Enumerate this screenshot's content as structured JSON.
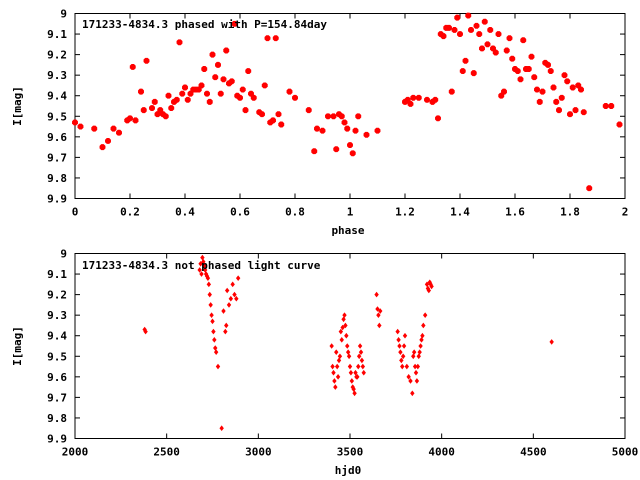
{
  "chart_data": [
    {
      "type": "scatter",
      "title": "171233-4834.3 phased with P=154.84day",
      "xlabel": "phase",
      "ylabel": "I[mag]",
      "xlim": [
        0,
        2
      ],
      "ylim": [
        9.9,
        9
      ],
      "y_inverted": true,
      "xticks": [
        "0",
        "0.2",
        "0.4",
        "0.6",
        "0.8",
        "1",
        "1.2",
        "1.4",
        "1.6",
        "1.8",
        "2"
      ],
      "yticks": [
        "9",
        "9.1",
        "9.2",
        "9.3",
        "9.4",
        "9.5",
        "9.6",
        "9.7",
        "9.8",
        "9.9"
      ],
      "marker": "star",
      "color": "#ff0000",
      "series": [
        {
          "x": [
            0.0,
            0.02,
            0.07,
            0.1,
            0.12,
            0.14,
            0.16,
            0.19,
            0.2,
            0.21,
            0.22,
            0.24,
            0.25,
            0.26,
            0.28,
            0.29,
            0.3,
            0.31,
            0.32,
            0.33,
            0.34,
            0.35,
            0.36,
            0.37,
            0.38,
            0.39,
            0.4,
            0.41,
            0.42,
            0.43,
            0.44,
            0.45,
            0.46,
            0.47,
            0.48,
            0.49,
            0.5,
            0.51,
            0.52,
            0.53,
            0.54,
            0.55,
            0.56,
            0.57,
            0.58,
            0.59,
            0.6,
            0.61,
            0.62,
            0.63,
            0.64,
            0.65,
            0.67,
            0.68,
            0.69,
            0.7,
            0.71,
            0.72,
            0.73,
            0.74,
            0.75,
            0.78,
            0.8,
            0.85,
            0.87,
            0.88,
            0.9,
            0.92,
            0.94,
            0.95,
            0.96,
            0.97,
            0.98,
            0.99,
            1.0,
            1.01,
            1.02,
            1.03,
            1.06,
            1.1,
            1.2,
            1.21,
            1.22,
            1.23,
            1.25,
            1.28,
            1.3,
            1.31,
            1.32,
            1.33,
            1.34,
            1.35,
            1.36,
            1.37,
            1.38,
            1.39,
            1.4,
            1.41,
            1.42,
            1.43,
            1.44,
            1.45,
            1.46,
            1.47,
            1.48,
            1.49,
            1.5,
            1.51,
            1.52,
            1.53,
            1.54,
            1.55,
            1.56,
            1.57,
            1.58,
            1.59,
            1.6,
            1.61,
            1.62,
            1.63,
            1.64,
            1.65,
            1.66,
            1.67,
            1.68,
            1.69,
            1.7,
            1.71,
            1.72,
            1.73,
            1.74,
            1.75,
            1.76,
            1.77,
            1.78,
            1.79,
            1.8,
            1.81,
            1.82,
            1.83,
            1.84,
            1.85,
            1.87,
            1.93,
            1.95,
            1.98
          ],
          "y": [
            9.53,
            9.55,
            9.56,
            9.65,
            9.62,
            9.56,
            9.58,
            9.52,
            9.51,
            9.26,
            9.52,
            9.38,
            9.47,
            9.23,
            9.46,
            9.43,
            9.49,
            9.47,
            9.49,
            9.5,
            9.4,
            9.46,
            9.43,
            9.42,
            9.14,
            9.39,
            9.36,
            9.42,
            9.39,
            9.37,
            9.37,
            9.37,
            9.35,
            9.27,
            9.39,
            9.43,
            9.2,
            9.31,
            9.25,
            9.39,
            9.32,
            9.18,
            9.34,
            9.33,
            9.05,
            9.4,
            9.41,
            9.37,
            9.47,
            9.28,
            9.39,
            9.41,
            9.48,
            9.49,
            9.35,
            9.12,
            9.53,
            9.52,
            9.12,
            9.49,
            9.54,
            9.38,
            9.41,
            9.47,
            9.67,
            9.56,
            9.57,
            9.5,
            9.5,
            9.66,
            9.49,
            9.5,
            9.53,
            9.56,
            9.64,
            9.68,
            9.57,
            9.5,
            9.59,
            9.57,
            9.43,
            9.42,
            9.44,
            9.41,
            9.41,
            9.42,
            9.43,
            9.42,
            9.51,
            9.1,
            9.11,
            9.07,
            9.07,
            9.38,
            9.08,
            9.02,
            9.1,
            9.28,
            9.23,
            9.01,
            9.08,
            9.29,
            9.06,
            9.1,
            9.17,
            9.04,
            9.15,
            9.08,
            9.17,
            9.19,
            9.1,
            9.4,
            9.38,
            9.18,
            9.12,
            9.22,
            9.27,
            9.28,
            9.32,
            9.13,
            9.27,
            9.27,
            9.21,
            9.31,
            9.37,
            9.43,
            9.38,
            9.24,
            9.25,
            9.28,
            9.36,
            9.43,
            9.47,
            9.41,
            9.3,
            9.33,
            9.49,
            9.36,
            9.47,
            9.35,
            9.37,
            9.48,
            9.85,
            9.45,
            9.45,
            9.54
          ]
        }
      ]
    },
    {
      "type": "scatter",
      "title": "171233-4834.3 not phased light curve",
      "xlabel": "hjd0",
      "ylabel": "I[mag]",
      "xlim": [
        2000,
        5000
      ],
      "ylim": [
        9.9,
        9
      ],
      "y_inverted": true,
      "xticks": [
        "2000",
        "2500",
        "3000",
        "3500",
        "4000",
        "4500",
        "5000"
      ],
      "yticks": [
        "9",
        "9.1",
        "9.2",
        "9.3",
        "9.4",
        "9.5",
        "9.6",
        "9.7",
        "9.8",
        "9.9"
      ],
      "marker": "diamond",
      "color": "#ff0000",
      "series": [
        {
          "x": [
            2380,
            2385,
            2680,
            2685,
            2690,
            2695,
            2700,
            2705,
            2710,
            2715,
            2720,
            2725,
            2730,
            2735,
            2740,
            2745,
            2750,
            2755,
            2760,
            2765,
            2770,
            2780,
            2800,
            2810,
            2820,
            2825,
            2830,
            2840,
            2850,
            2860,
            2870,
            2880,
            2890,
            3400,
            3405,
            3410,
            3415,
            3420,
            3425,
            3430,
            3435,
            3440,
            3445,
            3450,
            3455,
            3460,
            3465,
            3470,
            3475,
            3480,
            3485,
            3490,
            3495,
            3500,
            3505,
            3510,
            3515,
            3520,
            3525,
            3530,
            3535,
            3540,
            3545,
            3550,
            3555,
            3560,
            3565,
            3570,
            3575,
            3645,
            3650,
            3655,
            3660,
            3665,
            3760,
            3765,
            3770,
            3775,
            3780,
            3785,
            3790,
            3795,
            3800,
            3810,
            3820,
            3830,
            3840,
            3845,
            3850,
            3855,
            3860,
            3865,
            3870,
            3875,
            3880,
            3885,
            3890,
            3895,
            3900,
            3910,
            3920,
            3925,
            3930,
            3935,
            3940,
            3945,
            4600
          ],
          "y": [
            9.37,
            9.38,
            9.08,
            9.05,
            9.1,
            9.02,
            9.04,
            9.06,
            9.08,
            9.1,
            9.11,
            9.12,
            9.15,
            9.2,
            9.25,
            9.3,
            9.33,
            9.38,
            9.42,
            9.46,
            9.48,
            9.55,
            9.85,
            9.28,
            9.38,
            9.35,
            9.18,
            9.25,
            9.22,
            9.15,
            9.2,
            9.22,
            9.12,
            9.45,
            9.55,
            9.58,
            9.62,
            9.65,
            9.48,
            9.55,
            9.6,
            9.52,
            9.5,
            9.38,
            9.42,
            9.36,
            9.32,
            9.3,
            9.35,
            9.4,
            9.45,
            9.48,
            9.5,
            9.55,
            9.58,
            9.62,
            9.65,
            9.66,
            9.68,
            9.58,
            9.6,
            9.6,
            9.55,
            9.5,
            9.45,
            9.48,
            9.52,
            9.55,
            9.58,
            9.2,
            9.27,
            9.3,
            9.35,
            9.28,
            9.38,
            9.42,
            9.45,
            9.48,
            9.52,
            9.55,
            9.5,
            9.45,
            9.4,
            9.55,
            9.6,
            9.62,
            9.68,
            9.5,
            9.48,
            9.55,
            9.58,
            9.62,
            9.55,
            9.5,
            9.48,
            9.45,
            9.42,
            9.4,
            9.35,
            9.3,
            9.15,
            9.17,
            9.18,
            9.14,
            9.15,
            9.16,
            9.43
          ]
        }
      ]
    }
  ]
}
